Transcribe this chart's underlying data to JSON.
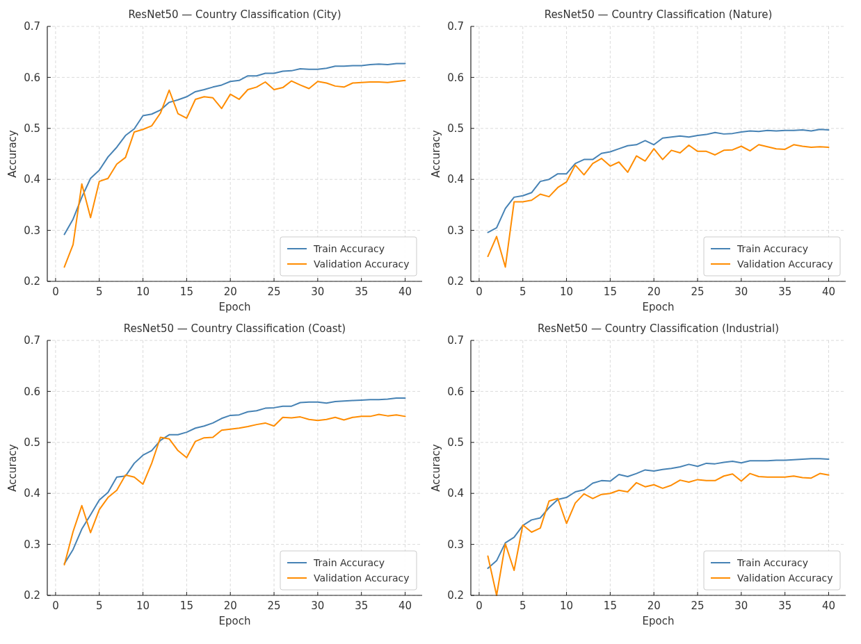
{
  "chart_data": [
    {
      "type": "line",
      "title": "ResNet50 — Country Classification (City)",
      "xlabel": "Epoch",
      "ylabel": "Accuracy",
      "x": [
        1,
        2,
        3,
        4,
        5,
        6,
        7,
        8,
        9,
        10,
        11,
        12,
        13,
        14,
        15,
        16,
        17,
        18,
        19,
        20,
        21,
        22,
        23,
        24,
        25,
        26,
        27,
        28,
        29,
        30,
        31,
        32,
        33,
        34,
        35,
        36,
        37,
        38,
        39,
        40
      ],
      "xlim": [
        -0.95,
        41.95
      ],
      "xticks": [
        0,
        5,
        10,
        15,
        20,
        25,
        30,
        35,
        40
      ],
      "ylim": [
        0.2,
        0.7
      ],
      "yticks": [
        0.2,
        0.3,
        0.4,
        0.5,
        0.6,
        0.7
      ],
      "grid": true,
      "legend": "bottom right",
      "series": [
        {
          "name": "Train Accuracy",
          "color": "#4682b4",
          "values": [
            0.292,
            0.322,
            0.365,
            0.402,
            0.418,
            0.444,
            0.463,
            0.486,
            0.499,
            0.525,
            0.528,
            0.536,
            0.551,
            0.556,
            0.562,
            0.572,
            0.576,
            0.581,
            0.585,
            0.592,
            0.594,
            0.603,
            0.603,
            0.608,
            0.608,
            0.612,
            0.613,
            0.617,
            0.616,
            0.616,
            0.618,
            0.622,
            0.622,
            0.623,
            0.623,
            0.625,
            0.626,
            0.625,
            0.627,
            0.627
          ]
        },
        {
          "name": "Validation Accuracy",
          "color": "#ff8c00",
          "values": [
            0.228,
            0.272,
            0.391,
            0.325,
            0.396,
            0.402,
            0.43,
            0.443,
            0.493,
            0.498,
            0.505,
            0.53,
            0.575,
            0.529,
            0.52,
            0.557,
            0.562,
            0.56,
            0.539,
            0.567,
            0.557,
            0.576,
            0.581,
            0.591,
            0.576,
            0.58,
            0.593,
            0.585,
            0.578,
            0.592,
            0.589,
            0.583,
            0.581,
            0.589,
            0.59,
            0.591,
            0.591,
            0.59,
            0.592,
            0.594
          ]
        }
      ]
    },
    {
      "type": "line",
      "title": "ResNet50 — Country Classification (Nature)",
      "xlabel": "Epoch",
      "ylabel": "Accuracy",
      "x": [
        1,
        2,
        3,
        4,
        5,
        6,
        7,
        8,
        9,
        10,
        11,
        12,
        13,
        14,
        15,
        16,
        17,
        18,
        19,
        20,
        21,
        22,
        23,
        24,
        25,
        26,
        27,
        28,
        29,
        30,
        31,
        32,
        33,
        34,
        35,
        36,
        37,
        38,
        39,
        40
      ],
      "xlim": [
        -0.95,
        41.95
      ],
      "xticks": [
        0,
        5,
        10,
        15,
        20,
        25,
        30,
        35,
        40
      ],
      "ylim": [
        0.2,
        0.7
      ],
      "yticks": [
        0.2,
        0.3,
        0.4,
        0.5,
        0.6,
        0.7
      ],
      "grid": true,
      "legend": "bottom right",
      "series": [
        {
          "name": "Train Accuracy",
          "color": "#4682b4",
          "values": [
            0.296,
            0.305,
            0.343,
            0.365,
            0.368,
            0.374,
            0.396,
            0.4,
            0.411,
            0.411,
            0.431,
            0.439,
            0.439,
            0.451,
            0.454,
            0.46,
            0.466,
            0.468,
            0.476,
            0.468,
            0.481,
            0.483,
            0.485,
            0.483,
            0.486,
            0.488,
            0.492,
            0.489,
            0.49,
            0.493,
            0.495,
            0.494,
            0.496,
            0.495,
            0.496,
            0.496,
            0.497,
            0.495,
            0.498,
            0.497
          ]
        },
        {
          "name": "Validation Accuracy",
          "color": "#ff8c00",
          "values": [
            0.249,
            0.288,
            0.228,
            0.356,
            0.356,
            0.359,
            0.371,
            0.366,
            0.384,
            0.395,
            0.428,
            0.409,
            0.431,
            0.441,
            0.426,
            0.434,
            0.414,
            0.446,
            0.436,
            0.46,
            0.439,
            0.457,
            0.452,
            0.467,
            0.455,
            0.455,
            0.448,
            0.457,
            0.458,
            0.465,
            0.456,
            0.468,
            0.464,
            0.46,
            0.459,
            0.468,
            0.465,
            0.463,
            0.464,
            0.463
          ]
        }
      ]
    },
    {
      "type": "line",
      "title": "ResNet50 — Country Classification (Coast)",
      "xlabel": "Epoch",
      "ylabel": "Accuracy",
      "x": [
        1,
        2,
        3,
        4,
        5,
        6,
        7,
        8,
        9,
        10,
        11,
        12,
        13,
        14,
        15,
        16,
        17,
        18,
        19,
        20,
        21,
        22,
        23,
        24,
        25,
        26,
        27,
        28,
        29,
        30,
        31,
        32,
        33,
        34,
        35,
        36,
        37,
        38,
        39,
        40
      ],
      "xlim": [
        -0.95,
        41.95
      ],
      "xticks": [
        0,
        5,
        10,
        15,
        20,
        25,
        30,
        35,
        40
      ],
      "ylim": [
        0.2,
        0.7
      ],
      "yticks": [
        0.2,
        0.3,
        0.4,
        0.5,
        0.6,
        0.7
      ],
      "grid": true,
      "legend": "bottom right",
      "series": [
        {
          "name": "Train Accuracy",
          "color": "#4682b4",
          "values": [
            0.262,
            0.29,
            0.33,
            0.358,
            0.387,
            0.402,
            0.432,
            0.434,
            0.459,
            0.475,
            0.484,
            0.504,
            0.515,
            0.515,
            0.52,
            0.528,
            0.532,
            0.538,
            0.547,
            0.553,
            0.554,
            0.56,
            0.562,
            0.567,
            0.568,
            0.571,
            0.571,
            0.578,
            0.579,
            0.579,
            0.577,
            0.58,
            0.581,
            0.582,
            0.583,
            0.584,
            0.584,
            0.585,
            0.587,
            0.587
          ]
        },
        {
          "name": "Validation Accuracy",
          "color": "#ff8c00",
          "values": [
            0.26,
            0.325,
            0.376,
            0.323,
            0.368,
            0.392,
            0.406,
            0.436,
            0.432,
            0.418,
            0.459,
            0.51,
            0.507,
            0.484,
            0.47,
            0.502,
            0.509,
            0.51,
            0.524,
            0.526,
            0.528,
            0.531,
            0.535,
            0.538,
            0.532,
            0.549,
            0.548,
            0.55,
            0.545,
            0.543,
            0.545,
            0.549,
            0.544,
            0.549,
            0.551,
            0.551,
            0.555,
            0.552,
            0.554,
            0.551
          ]
        }
      ]
    },
    {
      "type": "line",
      "title": "ResNet50 — Country Classification (Industrial)",
      "xlabel": "Epoch",
      "ylabel": "Accuracy",
      "x": [
        1,
        2,
        3,
        4,
        5,
        6,
        7,
        8,
        9,
        10,
        11,
        12,
        13,
        14,
        15,
        16,
        17,
        18,
        19,
        20,
        21,
        22,
        23,
        24,
        25,
        26,
        27,
        28,
        29,
        30,
        31,
        32,
        33,
        34,
        35,
        36,
        37,
        38,
        39,
        40
      ],
      "xlim": [
        -0.95,
        41.95
      ],
      "xticks": [
        0,
        5,
        10,
        15,
        20,
        25,
        30,
        35,
        40
      ],
      "ylim": [
        0.2,
        0.7
      ],
      "yticks": [
        0.2,
        0.3,
        0.4,
        0.5,
        0.6,
        0.7
      ],
      "grid": true,
      "legend": "bottom right",
      "series": [
        {
          "name": "Train Accuracy",
          "color": "#4682b4",
          "values": [
            0.253,
            0.268,
            0.303,
            0.314,
            0.337,
            0.348,
            0.352,
            0.372,
            0.388,
            0.392,
            0.403,
            0.407,
            0.42,
            0.425,
            0.424,
            0.437,
            0.433,
            0.439,
            0.446,
            0.444,
            0.447,
            0.449,
            0.452,
            0.457,
            0.453,
            0.459,
            0.458,
            0.461,
            0.463,
            0.46,
            0.464,
            0.464,
            0.464,
            0.465,
            0.465,
            0.466,
            0.467,
            0.468,
            0.468,
            0.467
          ]
        },
        {
          "name": "Validation Accuracy",
          "color": "#ff8c00",
          "values": [
            0.277,
            0.2,
            0.301,
            0.249,
            0.338,
            0.324,
            0.332,
            0.385,
            0.39,
            0.341,
            0.381,
            0.399,
            0.39,
            0.398,
            0.4,
            0.406,
            0.403,
            0.421,
            0.413,
            0.417,
            0.41,
            0.416,
            0.426,
            0.422,
            0.427,
            0.425,
            0.425,
            0.434,
            0.438,
            0.424,
            0.439,
            0.433,
            0.432,
            0.432,
            0.432,
            0.434,
            0.431,
            0.43,
            0.439,
            0.436
          ]
        }
      ]
    }
  ]
}
